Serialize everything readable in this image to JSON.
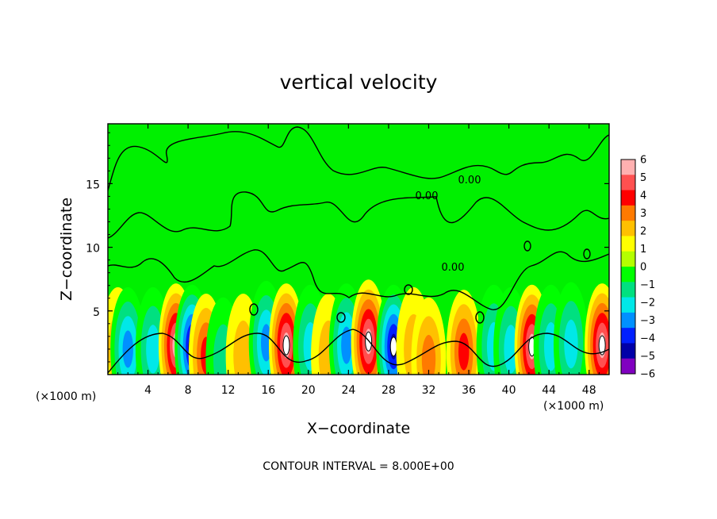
{
  "chart_data": {
    "type": "heatmap",
    "title": "vertical velocity",
    "xlabel": "X−coordinate",
    "ylabel": "Z−coordinate",
    "x_unit_left": "(×1000 m)",
    "x_unit_right": "(×1000 m)",
    "xlim": [
      0,
      50
    ],
    "ylim": [
      0,
      19.7
    ],
    "x_ticks": [
      4,
      8,
      12,
      16,
      20,
      24,
      28,
      32,
      36,
      40,
      44,
      48
    ],
    "x_tick_labels": [
      "4",
      "8",
      "12",
      "16",
      "20",
      "24",
      "28",
      "32",
      "36",
      "40",
      "44",
      "48"
    ],
    "y_ticks": [
      5,
      10,
      15
    ],
    "y_tick_labels": [
      "5",
      "10",
      "15"
    ],
    "colorbar": {
      "min": -6,
      "max": 6,
      "levels": [
        "6",
        "5",
        "4",
        "3",
        "2",
        "1",
        "0",
        "−1",
        "−2",
        "−3",
        "−4",
        "−5",
        "−6"
      ],
      "colors": [
        "#ffb0b0",
        "#ff5050",
        "#ff0000",
        "#ff7a00",
        "#ffc000",
        "#ffff00",
        "#b4ff00",
        "#00ff00",
        "#00e080",
        "#00e8e8",
        "#0090ff",
        "#0020ff",
        "#0000a8",
        "#8000c0"
      ]
    },
    "cells": [
      {
        "x": 1.0,
        "z": 2.0,
        "w": 1.5
      },
      {
        "x": 2.0,
        "z": 2.0,
        "w": -3.5
      },
      {
        "x": 4.5,
        "z": 2.0,
        "w": -3.0
      },
      {
        "x": 6.8,
        "z": 2.3,
        "w": 5.2
      },
      {
        "x": 8.4,
        "z": 2.2,
        "w": -6.0
      },
      {
        "x": 9.8,
        "z": 1.5,
        "w": 3.5
      },
      {
        "x": 11.5,
        "z": 1.2,
        "w": -1.8
      },
      {
        "x": 13.5,
        "z": 1.5,
        "w": 1.2
      },
      {
        "x": 15.8,
        "z": 2.5,
        "w": -3.8
      },
      {
        "x": 17.8,
        "z": 2.3,
        "w": 6.0
      },
      {
        "x": 20.2,
        "z": 2.2,
        "w": -3.0
      },
      {
        "x": 22.0,
        "z": 1.5,
        "w": 1.2
      },
      {
        "x": 23.8,
        "z": 2.3,
        "w": -4.0
      },
      {
        "x": 26.0,
        "z": 2.6,
        "w": 5.5
      },
      {
        "x": 28.5,
        "z": 2.2,
        "w": -5.5
      },
      {
        "x": 30.5,
        "z": 2.0,
        "w": 1.8
      },
      {
        "x": 32.0,
        "z": 1.2,
        "w": 2.5
      },
      {
        "x": 35.5,
        "z": 1.8,
        "w": 3.2
      },
      {
        "x": 38.5,
        "z": 2.2,
        "w": -3.0
      },
      {
        "x": 40.2,
        "z": 2.0,
        "w": -2.5
      },
      {
        "x": 42.3,
        "z": 2.2,
        "w": 5.8
      },
      {
        "x": 44.2,
        "z": 2.2,
        "w": -2.8
      },
      {
        "x": 46.2,
        "z": 2.4,
        "w": -3.0
      },
      {
        "x": 49.3,
        "z": 2.3,
        "w": 5.5
      }
    ],
    "contour_labels": [
      "0.00",
      "0.00",
      "0.00"
    ],
    "footer": "CONTOUR INTERVAL = 8.000E+00"
  }
}
